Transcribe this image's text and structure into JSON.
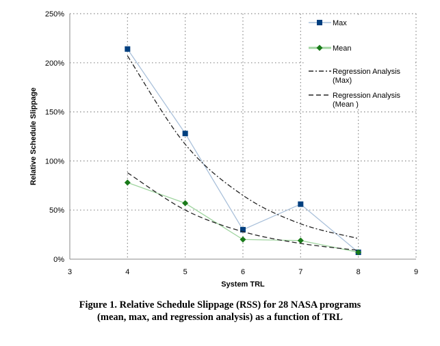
{
  "chart_data": {
    "type": "line",
    "xlabel": "System TRL",
    "ylabel": "Relative Schedule Slippage",
    "xlim": [
      3,
      9
    ],
    "ylim": [
      0,
      250
    ],
    "x_ticks": [
      "3",
      "4",
      "5",
      "6",
      "7",
      "8",
      "9"
    ],
    "y_ticks": [
      "0%",
      "50%",
      "100%",
      "150%",
      "200%",
      "250%"
    ],
    "grid": true,
    "legend_position": "top-right",
    "x": [
      4,
      5,
      6,
      7,
      8
    ],
    "series": [
      {
        "name": "Max",
        "values": [
          214,
          128,
          30,
          56,
          7
        ],
        "color": "#003f7f",
        "line_color": "#a9c0da",
        "marker": "square",
        "style": "solid"
      },
      {
        "name": "Mean",
        "values": [
          78,
          57,
          20,
          19,
          7
        ],
        "color": "#1a7a1a",
        "line_color": "#9fd49f",
        "marker": "diamond",
        "style": "solid"
      },
      {
        "name": "Regression Analysis (Max)",
        "values": [
          207,
          117,
          65,
          36,
          21
        ],
        "color": "#222222",
        "style": "dash-dot"
      },
      {
        "name": "Regression Analysis (Mean )",
        "values": [
          88,
          50,
          28,
          16,
          9
        ],
        "color": "#222222",
        "style": "dash"
      }
    ],
    "legend": [
      {
        "line1": "Max",
        "line2": ""
      },
      {
        "line1": "Mean",
        "line2": ""
      },
      {
        "line1": "Regression Analysis",
        "line2": "(Max)"
      },
      {
        "line1": "Regression Analysis",
        "line2": "(Mean )"
      }
    ]
  },
  "caption": {
    "line1": "Figure 1. Relative Schedule Slippage (RSS) for 28 NASA programs",
    "line2": "(mean, max, and regression analysis) as a function of TRL"
  }
}
